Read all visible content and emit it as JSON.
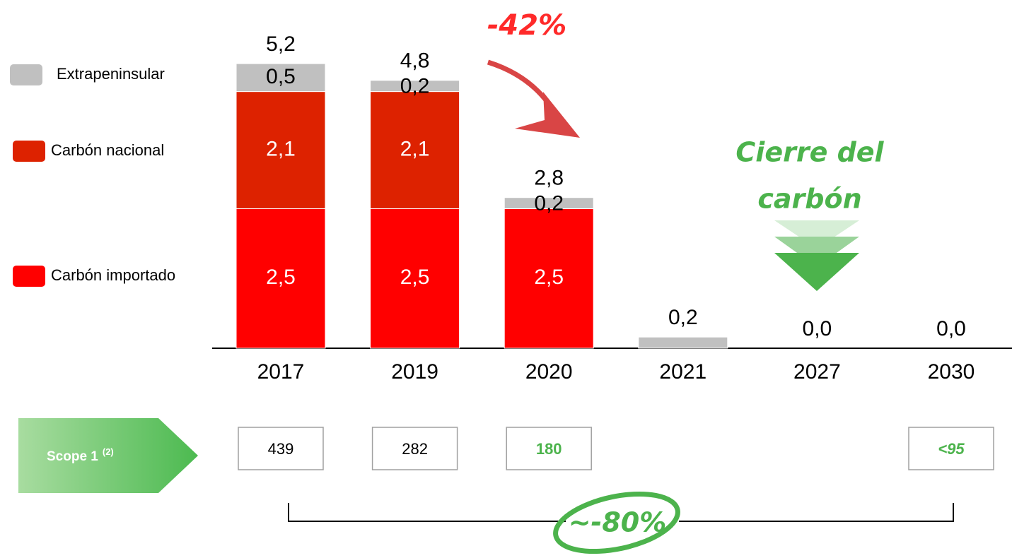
{
  "chart_data": {
    "type": "stacked_bar",
    "categories": [
      "2017",
      "2019",
      "2020",
      "2021",
      "2027",
      "2030"
    ],
    "series": [
      {
        "name": "Carbón importado",
        "color": "#ff0000",
        "values": [
          2.5,
          2.5,
          2.5,
          null,
          null,
          null
        ],
        "value_labels": [
          "2,5",
          "2,5",
          "2,5",
          null,
          null,
          null
        ]
      },
      {
        "name": "Carbón nacional",
        "color": "#dd2200",
        "values": [
          2.1,
          2.1,
          null,
          null,
          null,
          null
        ],
        "value_labels": [
          "2,1",
          "2,1",
          null,
          null,
          null,
          null
        ]
      },
      {
        "name": "Extrapeninsular",
        "color": "#c0c0c0",
        "values": [
          0.5,
          0.2,
          0.2,
          0.2,
          null,
          null
        ],
        "value_labels": [
          "0,5",
          "0,2",
          "0,2",
          null,
          null,
          null
        ]
      }
    ],
    "totals": {
      "values": [
        5.2,
        4.8,
        2.8,
        0.2,
        0.0,
        0.0
      ],
      "value_labels": [
        "5,2",
        "4,8",
        "2,8",
        "0,2",
        "0,0",
        "0,0"
      ]
    },
    "annotations": {
      "drop": "-42%",
      "closure": [
        "Cierre del",
        "carbón"
      ],
      "reduction": "~-80%"
    },
    "scope1": {
      "label": "Scope 1",
      "note": "(2)",
      "values": [
        "439",
        "282",
        "180",
        null,
        null,
        "<95"
      ]
    }
  }
}
